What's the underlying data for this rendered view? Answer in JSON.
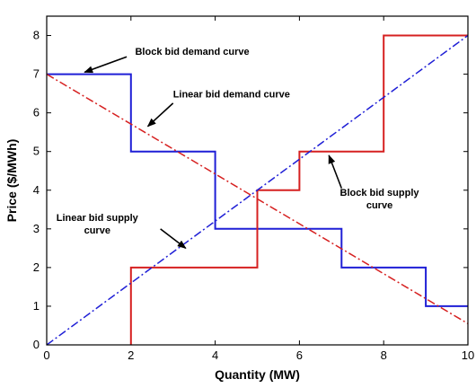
{
  "chart_data": {
    "type": "line",
    "title": "",
    "xlabel": "Quantity (MW)",
    "ylabel": "Price ($/MWh)",
    "xlim": [
      0,
      10
    ],
    "ylim": [
      0,
      8.5
    ],
    "xticks": [
      0,
      2,
      4,
      6,
      8,
      10
    ],
    "yticks": [
      0,
      1,
      2,
      3,
      4,
      5,
      6,
      7,
      8
    ],
    "grid": false,
    "legend": "none",
    "series": [
      {
        "id": "block-demand",
        "color": "#1f1fd6",
        "style": "solid",
        "x": [
          0,
          2,
          2,
          4,
          4,
          7,
          7,
          9,
          9,
          10
        ],
        "y": [
          7,
          7,
          5,
          5,
          3,
          3,
          2,
          2,
          1,
          1
        ]
      },
      {
        "id": "block-supply",
        "color": "#d62020",
        "style": "solid",
        "x": [
          2,
          2,
          5,
          5,
          6,
          6,
          8,
          8,
          10
        ],
        "y": [
          0,
          2,
          2,
          4,
          4,
          5,
          5,
          8,
          8
        ]
      },
      {
        "id": "linear-demand",
        "color": "#d62020",
        "style": "dashdot",
        "x": [
          0,
          10
        ],
        "y": [
          7,
          0.55
        ]
      },
      {
        "id": "linear-supply",
        "color": "#1f1fd6",
        "style": "dashdot",
        "x": [
          0,
          10
        ],
        "y": [
          0,
          8
        ]
      }
    ],
    "annotations": [
      {
        "lines": [
          "Block bid demand curve"
        ],
        "text_at": [
          2.1,
          7.5
        ],
        "arrow_from": [
          1.9,
          7.45
        ],
        "arrow_to": [
          0.9,
          7.05
        ],
        "anchor": "start"
      },
      {
        "lines": [
          "Linear bid demand curve"
        ],
        "text_at": [
          3.0,
          6.4
        ],
        "arrow_from": [
          3.0,
          6.25
        ],
        "arrow_to": [
          2.4,
          5.65
        ],
        "anchor": "start"
      },
      {
        "lines": [
          "Linear bid supply",
          "curve"
        ],
        "text_at": [
          1.2,
          3.2
        ],
        "arrow_from": [
          2.7,
          3.0
        ],
        "arrow_to": [
          3.3,
          2.5
        ],
        "anchor": "middle"
      },
      {
        "lines": [
          "Block bid supply",
          "curve"
        ],
        "text_at": [
          7.9,
          3.85
        ],
        "arrow_from": [
          7.0,
          4.05
        ],
        "arrow_to": [
          6.7,
          4.9
        ],
        "anchor": "middle"
      }
    ]
  }
}
